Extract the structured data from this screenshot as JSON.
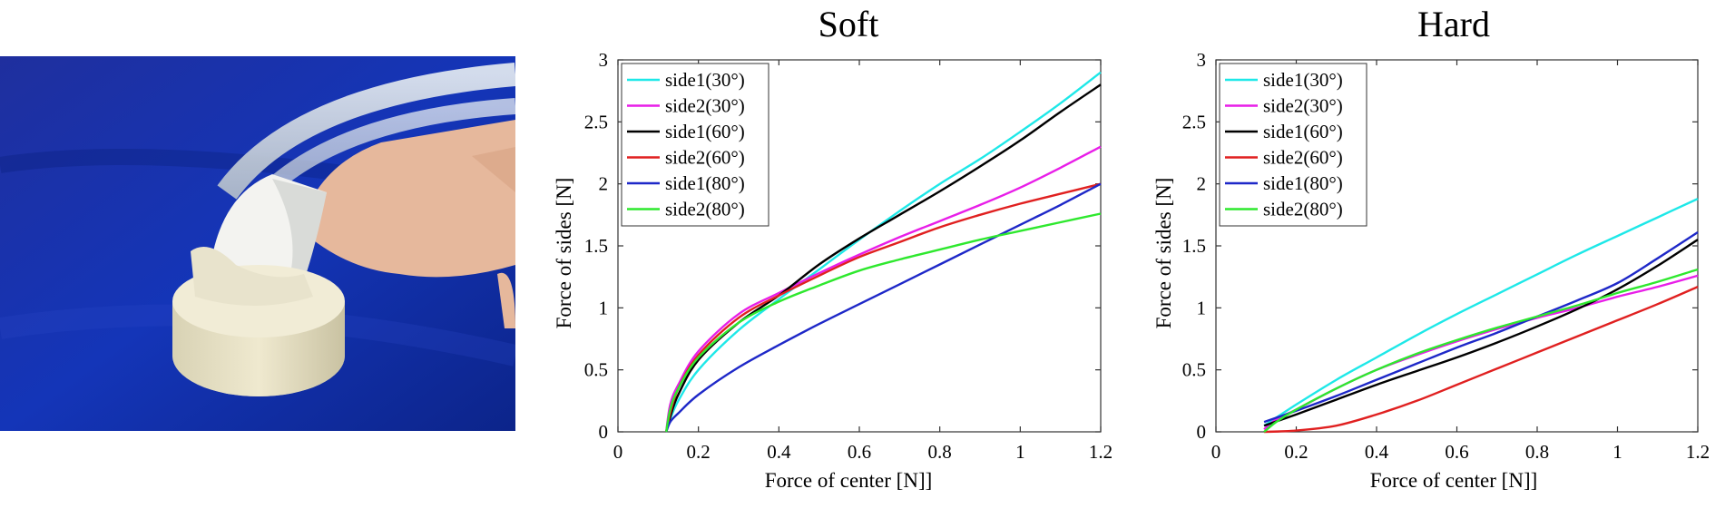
{
  "chart_data": [
    {
      "type": "line",
      "title": "Soft",
      "xlabel": "Force of center [N]]",
      "ylabel": "Force of sides [N]",
      "xlim": [
        0,
        1.2
      ],
      "ylim": [
        0,
        3
      ],
      "xticks": [
        "0",
        "0.2",
        "0.4",
        "0.6",
        "0.8",
        "1",
        "1.2"
      ],
      "yticks": [
        "0",
        "0.5",
        "1",
        "1.5",
        "2",
        "2.5",
        "3"
      ],
      "legend_position": "top-left",
      "grid": false,
      "series": [
        {
          "name": "side1(30°)",
          "color": "#1ee8e8",
          "x": [
            0.12,
            0.13,
            0.15,
            0.2,
            0.3,
            0.4,
            0.5,
            0.6,
            0.7,
            0.8,
            0.9,
            1.0,
            1.1,
            1.2
          ],
          "y": [
            0.0,
            0.1,
            0.25,
            0.5,
            0.82,
            1.07,
            1.31,
            1.55,
            1.78,
            2.0,
            2.2,
            2.42,
            2.65,
            2.9
          ]
        },
        {
          "name": "side2(30°)",
          "color": "#e81ee8",
          "x": [
            0.12,
            0.13,
            0.15,
            0.2,
            0.3,
            0.4,
            0.5,
            0.6,
            0.7,
            0.8,
            0.9,
            1.0,
            1.1,
            1.2
          ],
          "y": [
            0.0,
            0.22,
            0.38,
            0.65,
            0.95,
            1.12,
            1.28,
            1.43,
            1.57,
            1.7,
            1.83,
            1.97,
            2.13,
            2.3
          ]
        },
        {
          "name": "side1(60°)",
          "color": "#000000",
          "x": [
            0.12,
            0.13,
            0.15,
            0.2,
            0.3,
            0.4,
            0.5,
            0.6,
            0.7,
            0.8,
            0.9,
            1.0,
            1.1,
            1.2
          ],
          "y": [
            0.0,
            0.12,
            0.3,
            0.58,
            0.88,
            1.1,
            1.35,
            1.56,
            1.75,
            1.94,
            2.14,
            2.35,
            2.58,
            2.8
          ]
        },
        {
          "name": "side2(60°)",
          "color": "#e02020",
          "x": [
            0.12,
            0.13,
            0.15,
            0.2,
            0.3,
            0.4,
            0.5,
            0.6,
            0.7,
            0.8,
            0.9,
            1.0,
            1.1,
            1.2
          ],
          "y": [
            0.0,
            0.15,
            0.35,
            0.62,
            0.92,
            1.1,
            1.26,
            1.41,
            1.53,
            1.65,
            1.75,
            1.84,
            1.92,
            2.0
          ]
        },
        {
          "name": "side1(80°)",
          "color": "#1e28c8",
          "x": [
            0.12,
            0.13,
            0.15,
            0.2,
            0.3,
            0.4,
            0.5,
            0.6,
            0.7,
            0.8,
            0.9,
            1.0,
            1.1,
            1.2
          ],
          "y": [
            0.0,
            0.08,
            0.15,
            0.3,
            0.52,
            0.7,
            0.87,
            1.03,
            1.19,
            1.35,
            1.51,
            1.67,
            1.83,
            2.0
          ]
        },
        {
          "name": "side2(80°)",
          "color": "#2ee82e",
          "x": [
            0.12,
            0.13,
            0.15,
            0.2,
            0.3,
            0.4,
            0.5,
            0.6,
            0.7,
            0.8,
            0.9,
            1.0,
            1.1,
            1.2
          ],
          "y": [
            0.0,
            0.18,
            0.35,
            0.6,
            0.88,
            1.05,
            1.18,
            1.3,
            1.39,
            1.47,
            1.55,
            1.62,
            1.69,
            1.76
          ]
        }
      ]
    },
    {
      "type": "line",
      "title": "Hard",
      "xlabel": "Force of center [N]]",
      "ylabel": "Force of sides [N]",
      "xlim": [
        0,
        1.2
      ],
      "ylim": [
        0,
        3
      ],
      "xticks": [
        "0",
        "0.2",
        "0.4",
        "0.6",
        "0.8",
        "1",
        "1.2"
      ],
      "yticks": [
        "0",
        "0.5",
        "1",
        "1.5",
        "2",
        "2.5",
        "3"
      ],
      "legend_position": "top-left",
      "grid": false,
      "series": [
        {
          "name": "side1(30°)",
          "color": "#1ee8e8",
          "x": [
            0.12,
            0.2,
            0.3,
            0.4,
            0.5,
            0.6,
            0.7,
            0.8,
            0.9,
            1.0,
            1.1,
            1.2
          ],
          "y": [
            0.05,
            0.22,
            0.42,
            0.6,
            0.78,
            0.95,
            1.11,
            1.27,
            1.43,
            1.58,
            1.73,
            1.88
          ]
        },
        {
          "name": "side2(30°)",
          "color": "#e81ee8",
          "x": [
            0.12,
            0.15,
            0.2,
            0.3,
            0.4,
            0.5,
            0.6,
            0.7,
            0.8,
            0.9,
            1.0,
            1.1,
            1.2
          ],
          "y": [
            0.02,
            0.1,
            0.18,
            0.35,
            0.5,
            0.62,
            0.73,
            0.83,
            0.92,
            1.0,
            1.09,
            1.17,
            1.26
          ]
        },
        {
          "name": "side1(60°)",
          "color": "#000000",
          "x": [
            0.12,
            0.2,
            0.3,
            0.4,
            0.5,
            0.6,
            0.7,
            0.8,
            0.9,
            1.0,
            1.1,
            1.2
          ],
          "y": [
            0.05,
            0.14,
            0.26,
            0.38,
            0.49,
            0.6,
            0.72,
            0.85,
            0.99,
            1.15,
            1.34,
            1.55
          ]
        },
        {
          "name": "side2(60°)",
          "color": "#e02020",
          "x": [
            0.12,
            0.2,
            0.3,
            0.4,
            0.5,
            0.6,
            0.7,
            0.8,
            0.9,
            1.0,
            1.1,
            1.2
          ],
          "y": [
            0.0,
            0.01,
            0.05,
            0.14,
            0.25,
            0.38,
            0.51,
            0.64,
            0.77,
            0.9,
            1.03,
            1.17
          ]
        },
        {
          "name": "side1(80°)",
          "color": "#1e28c8",
          "x": [
            0.12,
            0.2,
            0.3,
            0.4,
            0.5,
            0.6,
            0.7,
            0.8,
            0.9,
            1.0,
            1.1,
            1.2
          ],
          "y": [
            0.08,
            0.17,
            0.29,
            0.42,
            0.55,
            0.68,
            0.8,
            0.93,
            1.06,
            1.2,
            1.4,
            1.61
          ]
        },
        {
          "name": "side2(80°)",
          "color": "#2ee82e",
          "x": [
            0.12,
            0.15,
            0.2,
            0.3,
            0.4,
            0.5,
            0.6,
            0.7,
            0.8,
            0.9,
            1.0,
            1.1,
            1.2
          ],
          "y": [
            0.0,
            0.08,
            0.18,
            0.35,
            0.5,
            0.63,
            0.74,
            0.84,
            0.93,
            1.02,
            1.12,
            1.21,
            1.31
          ]
        }
      ]
    }
  ]
}
